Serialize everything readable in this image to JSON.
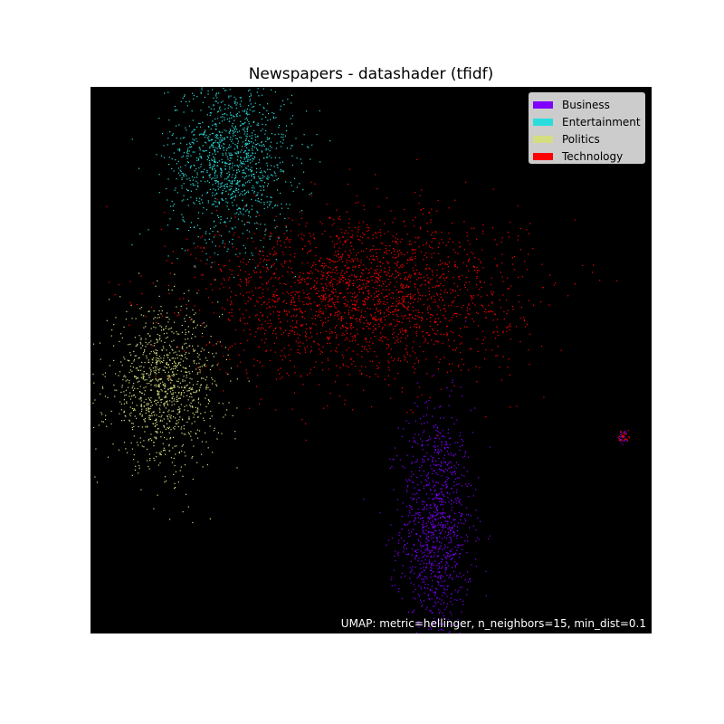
{
  "chart_data": {
    "type": "scatter",
    "title": "Newspapers - datashader (tfidf)",
    "annotation": "UMAP: metric=hellinger, n_neighbors=15, min_dist=0.1",
    "background": "#000000",
    "axes_visible": false,
    "legend_position": "top-right",
    "series": [
      {
        "name": "Business",
        "color": "#8000ff",
        "clusters": [
          {
            "cx": 0.615,
            "cy": 0.195,
            "sx": 0.032,
            "sy": 0.11,
            "n": 1100
          },
          {
            "cx": 0.95,
            "cy": 0.36,
            "sx": 0.004,
            "sy": 0.006,
            "n": 25
          }
        ]
      },
      {
        "name": "Entertainment",
        "color": "#2adddd",
        "clusters": [
          {
            "cx": 0.25,
            "cy": 0.87,
            "sx": 0.055,
            "sy": 0.075,
            "n": 1300
          }
        ]
      },
      {
        "name": "Politics",
        "color": "#d4dd80",
        "clusters": [
          {
            "cx": 0.13,
            "cy": 0.45,
            "sx": 0.05,
            "sy": 0.07,
            "n": 1100
          }
        ]
      },
      {
        "name": "Technology",
        "color": "#ff0000",
        "clusters": [
          {
            "cx": 0.48,
            "cy": 0.62,
            "sx": 0.14,
            "sy": 0.075,
            "n": 2300
          },
          {
            "cx": 0.95,
            "cy": 0.36,
            "sx": 0.005,
            "sy": 0.007,
            "n": 25
          }
        ]
      }
    ]
  }
}
